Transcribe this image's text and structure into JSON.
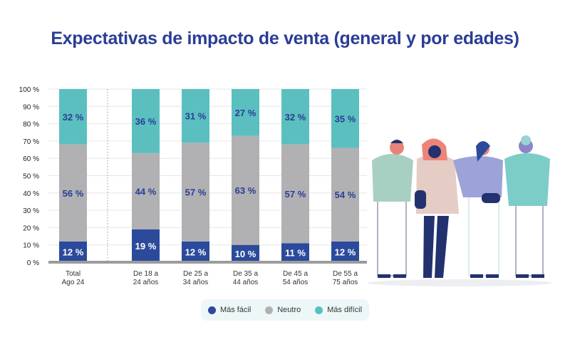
{
  "chart_data": {
    "type": "bar",
    "stacked": true,
    "title": "Expectativas de impacto de venta (general y por edades)",
    "xlabel": "",
    "ylabel": "",
    "ylim": [
      0,
      100
    ],
    "yticks": [
      "0 %",
      "10 %",
      "20 %",
      "30 %",
      "40 %",
      "50 %",
      "60 %",
      "70 %",
      "80 %",
      "90 %",
      "100 %"
    ],
    "grid": true,
    "legend_position": "bottom",
    "categories": [
      [
        "Total",
        "Ago 24"
      ],
      [
        "De 18 a",
        "24 años"
      ],
      [
        "De 25 a",
        "34 años"
      ],
      [
        "De 35 a",
        "44 años"
      ],
      [
        "De 45 a",
        "54 años"
      ],
      [
        "De 55 a",
        "75 años"
      ]
    ],
    "series": [
      {
        "name": "Más fácil",
        "color": "#2b4a9b",
        "values": [
          12,
          19,
          12,
          10,
          11,
          12
        ]
      },
      {
        "name": "Neutro",
        "color": "#b1b1b3",
        "values": [
          56,
          44,
          57,
          63,
          57,
          54
        ]
      },
      {
        "name": "Más difícil",
        "color": "#5bbfbf",
        "values": [
          32,
          36,
          31,
          27,
          32,
          35
        ]
      }
    ],
    "label_suffix": " %",
    "label_color": "#2b3d97"
  },
  "colors": {
    "title": "#2b3d97",
    "legend_bg": "#eef7f8"
  },
  "illustration": "group-of-four-people"
}
